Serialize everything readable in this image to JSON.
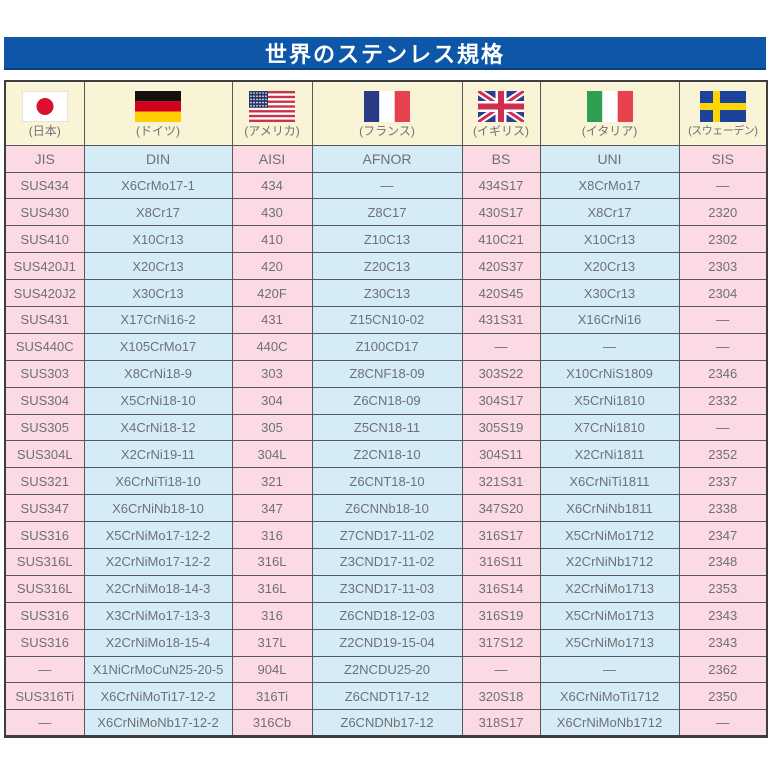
{
  "page": {
    "title": "世界のステンレス規格"
  },
  "colors": {
    "banner_blue": "#0e56a7",
    "banner_blue_dark": "#0a3f85",
    "header_cream": "#faf4d6",
    "pink": "#fbdae4",
    "light_blue": "#d5ecf7",
    "border_gray": "#58585a",
    "cell_text": "#6f6f74"
  },
  "table": {
    "columns": [
      {
        "country": "(日本)",
        "org": "JIS",
        "flag": "japan-flag-icon"
      },
      {
        "country": "(ドイツ)",
        "org": "DIN",
        "flag": "germany-flag-icon"
      },
      {
        "country": "(アメリカ)",
        "org": "AISI",
        "flag": "usa-flag-icon"
      },
      {
        "country": "(フランス)",
        "org": "AFNOR",
        "flag": "france-flag-icon"
      },
      {
        "country": "(イギリス)",
        "org": "BS",
        "flag": "uk-flag-icon"
      },
      {
        "country": "(イタリア)",
        "org": "UNI",
        "flag": "italy-flag-icon"
      },
      {
        "country": "(スウェーデン)",
        "org": "SIS",
        "flag": "sweden-flag-icon"
      }
    ],
    "rows": [
      [
        "SUS434",
        "X6CrMo17-1",
        "434",
        "—",
        "434S17",
        "X8CrMo17",
        "—"
      ],
      [
        "SUS430",
        "X8Cr17",
        "430",
        "Z8C17",
        "430S17",
        "X8Cr17",
        "2320"
      ],
      [
        "SUS410",
        "X10Cr13",
        "410",
        "Z10C13",
        "410C21",
        "X10Cr13",
        "2302"
      ],
      [
        "SUS420J1",
        "X20Cr13",
        "420",
        "Z20C13",
        "420S37",
        "X20Cr13",
        "2303"
      ],
      [
        "SUS420J2",
        "X30Cr13",
        "420F",
        "Z30C13",
        "420S45",
        "X30Cr13",
        "2304"
      ],
      [
        "SUS431",
        "X17CrNi16-2",
        "431",
        "Z15CN10-02",
        "431S31",
        "X16CrNi16",
        "—"
      ],
      [
        "SUS440C",
        "X105CrMo17",
        "440C",
        "Z100CD17",
        "—",
        "—",
        "—"
      ],
      [
        "SUS303",
        "X8CrNi18-9",
        "303",
        "Z8CNF18-09",
        "303S22",
        "X10CrNiS1809",
        "2346"
      ],
      [
        "SUS304",
        "X5CrNi18-10",
        "304",
        "Z6CN18-09",
        "304S17",
        "X5CrNi1810",
        "2332"
      ],
      [
        "SUS305",
        "X4CrNi18-12",
        "305",
        "Z5CN18-11",
        "305S19",
        "X7CrNi1810",
        "—"
      ],
      [
        "SUS304L",
        "X2CrNi19-11",
        "304L",
        "Z2CN18-10",
        "304S11",
        "X2CrNi1811",
        "2352"
      ],
      [
        "SUS321",
        "X6CrNiTi18-10",
        "321",
        "Z6CNT18-10",
        "321S31",
        "X6CrNiTi1811",
        "2337"
      ],
      [
        "SUS347",
        "X6CrNiNb18-10",
        "347",
        "Z6CNNb18-10",
        "347S20",
        "X6CrNiNb1811",
        "2338"
      ],
      [
        "SUS316",
        "X5CrNiMo17-12-2",
        "316",
        "Z7CND17-11-02",
        "316S17",
        "X5CrNiMo1712",
        "2347"
      ],
      [
        "SUS316L",
        "X2CrNiMo17-12-2",
        "316L",
        "Z3CND17-11-02",
        "316S11",
        "X2CrNiNb1712",
        "2348"
      ],
      [
        "SUS316L",
        "X2CrNiMo18-14-3",
        "316L",
        "Z3CND17-11-03",
        "316S14",
        "X2CrNiMo1713",
        "2353"
      ],
      [
        "SUS316",
        "X3CrNiMo17-13-3",
        "316",
        "Z6CND18-12-03",
        "316S19",
        "X5CrNiMo1713",
        "2343"
      ],
      [
        "SUS316",
        "X2CrNiMo18-15-4",
        "317L",
        "Z2CND19-15-04",
        "317S12",
        "X5CrNiMo1713",
        "2343"
      ],
      [
        "—",
        "X1NiCrMoCuN25-20-5",
        "904L",
        "Z2NCDU25-20",
        "—",
        "—",
        "2362"
      ],
      [
        "SUS316Ti",
        "X6CrNiMoTi17-12-2",
        "316Ti",
        "Z6CNDT17-12",
        "320S18",
        "X6CrNiMoTi1712",
        "2350"
      ],
      [
        "—",
        "X6CrNiMoNb17-12-2",
        "316Cb",
        "Z6CNDNb17-12",
        "318S17",
        "X6CrNiMoNb1712",
        "—"
      ]
    ]
  }
}
